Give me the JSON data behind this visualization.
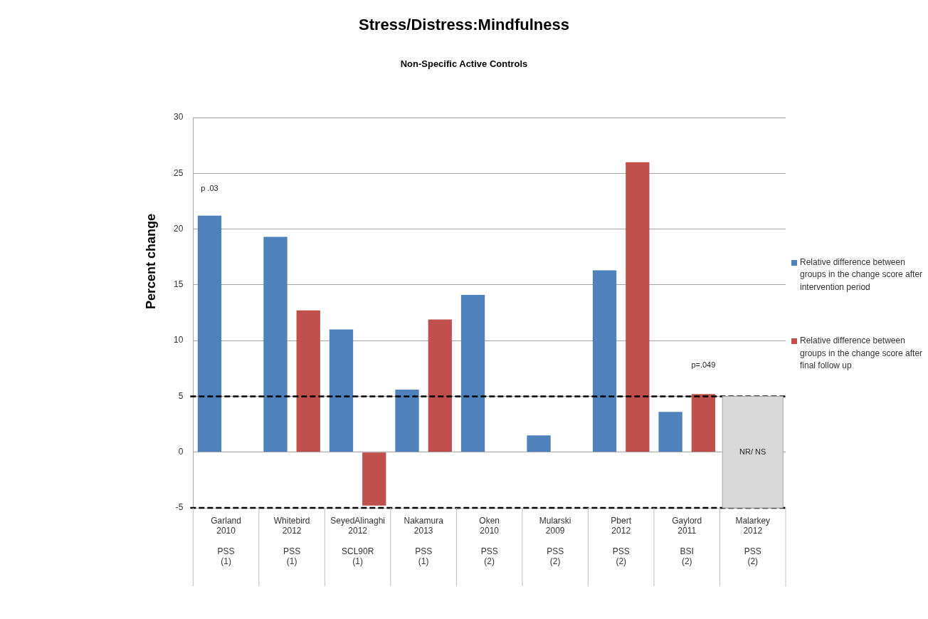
{
  "chart_data": {
    "type": "bar",
    "title": "Stress/Distress:Mindfulness",
    "subtitle": "Non-Specific Active Controls",
    "ylabel": "Percent change",
    "categories": [
      "Garland\n2010\n\nPSS\n(1)",
      "Whitebird\n2012\n\nPSS\n(1)",
      "SeyedAlinaghi\n2012\n\nSCL90R\n(1)",
      "Nakamura\n2013\n\nPSS\n(1)",
      "Oken\n2010\n\nPSS\n(2)",
      "Mularski\n2009\n\nPSS\n(2)",
      "Pbert\n2012\n\nPSS\n(2)",
      "Gaylord\n2011\n\nBSI\n(2)",
      "Malarkey\n2012\n\nPSS\n(2)"
    ],
    "series": [
      {
        "name": "Relative difference between groups in the change score after intervention period",
        "color": "#4f81bd",
        "values": [
          21.2,
          19.3,
          11.0,
          5.6,
          14.1,
          1.5,
          16.3,
          3.6,
          null
        ]
      },
      {
        "name": "Relative difference between groups in the change score after final follow up",
        "color": "#c0504d",
        "values": [
          null,
          12.7,
          -4.8,
          11.9,
          null,
          null,
          26.0,
          5.2,
          null
        ]
      },
      {
        "color": "#d9d9d9",
        "values": [
          null,
          null,
          null,
          null,
          null,
          null,
          null,
          null,
          10
        ],
        "base": [
          null,
          null,
          null,
          null,
          null,
          null,
          null,
          null,
          -5
        ],
        "value_labels": [
          null,
          null,
          null,
          null,
          null,
          null,
          null,
          null,
          "NR/ NS"
        ]
      }
    ],
    "ylim": [
      -5,
      30
    ],
    "yticks": [
      -5,
      0,
      5,
      10,
      15,
      20,
      25,
      30
    ],
    "grid": "y",
    "legend": "right",
    "ref_lines": [
      {
        "axis": "y",
        "value": 5,
        "color": "#000000",
        "line_style": "dashed"
      },
      {
        "axis": "y",
        "value": -5,
        "color": "#000000",
        "line_style": "dashed"
      }
    ],
    "annotations": [
      "p .03",
      "p=.049"
    ]
  }
}
